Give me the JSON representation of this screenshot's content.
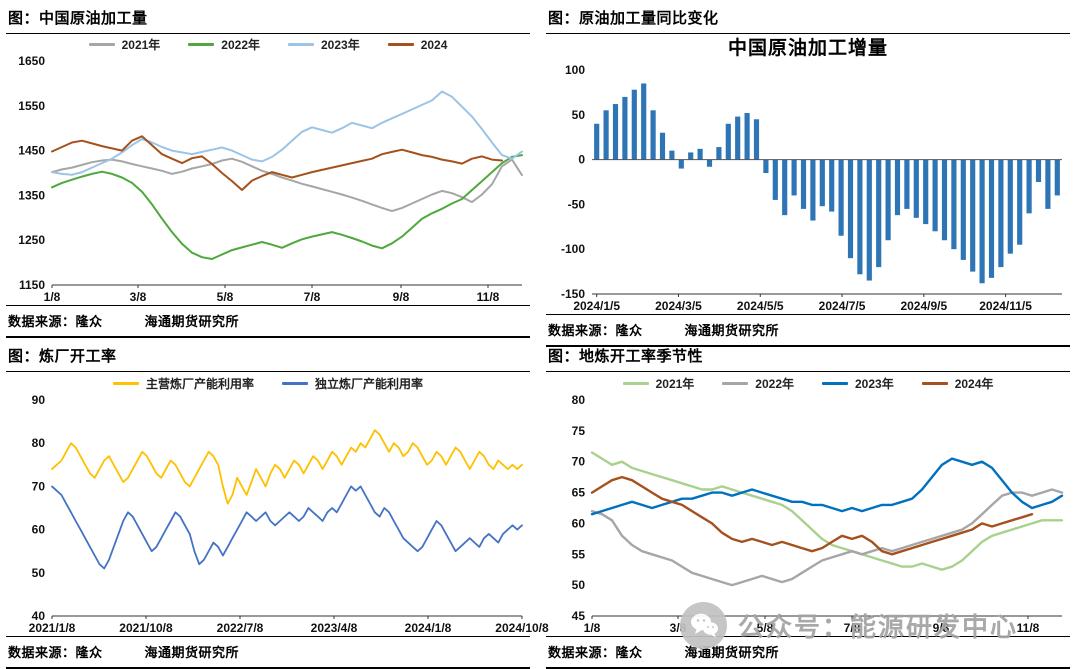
{
  "panels": [
    {
      "header": "图：中国原油加工量",
      "source_left": "数据来源：隆众",
      "source_right": "海通期货研究所"
    },
    {
      "header": "图：原油加工量同比变化",
      "source_left": "数据来源：隆众",
      "source_right": "海通期货研究所"
    },
    {
      "header": "图：炼厂开工率",
      "source_left": "数据来源：隆众",
      "source_right": "海通期货研究所"
    },
    {
      "header": "图：地炼开工率季节性",
      "source_left": "数据来源：隆众",
      "source_right": "海通期货研究所"
    }
  ],
  "watermark": {
    "icon": "wechat-icon",
    "text": "公众号：能源研发中心"
  },
  "chart_data": [
    {
      "type": "line",
      "title": "",
      "ylim": [
        1150,
        1650
      ],
      "yticks": [
        1650,
        1550,
        1450,
        1350,
        1250,
        1150
      ],
      "x_max": 47,
      "xticks": [
        0,
        8.6,
        17.3,
        26,
        34.9,
        43.6
      ],
      "xticklabels": [
        "1/8",
        "3/8",
        "5/8",
        "7/8",
        "9/8",
        "11/8"
      ],
      "line_width": 2,
      "series": [
        {
          "name": "2021年",
          "color": "#A6A6A6",
          "values": [
            1402,
            1408,
            1412,
            1418,
            1424,
            1428,
            1430,
            1426,
            1420,
            1415,
            1410,
            1405,
            1398,
            1403,
            1410,
            1415,
            1420,
            1428,
            1432,
            1425,
            1415,
            1405,
            1398,
            1390,
            1383,
            1376,
            1370,
            1364,
            1358,
            1352,
            1345,
            1338,
            1330,
            1322,
            1315,
            1322,
            1332,
            1342,
            1352,
            1360,
            1355,
            1346,
            1335,
            1352,
            1375,
            1415,
            1430,
            1395
          ]
        },
        {
          "name": "2022年",
          "color": "#4FA83D",
          "values": [
            1368,
            1378,
            1385,
            1392,
            1398,
            1403,
            1398,
            1390,
            1378,
            1358,
            1330,
            1298,
            1268,
            1242,
            1222,
            1212,
            1208,
            1218,
            1228,
            1234,
            1240,
            1246,
            1240,
            1233,
            1243,
            1252,
            1258,
            1263,
            1268,
            1262,
            1255,
            1247,
            1238,
            1232,
            1243,
            1258,
            1278,
            1298,
            1310,
            1320,
            1332,
            1342,
            1362,
            1382,
            1402,
            1422,
            1436,
            1440
          ]
        },
        {
          "name": "2023年",
          "color": "#9DC3E6",
          "values": [
            1402,
            1398,
            1396,
            1402,
            1412,
            1422,
            1432,
            1446,
            1462,
            1476,
            1468,
            1458,
            1450,
            1446,
            1442,
            1447,
            1452,
            1457,
            1450,
            1440,
            1430,
            1426,
            1436,
            1452,
            1472,
            1492,
            1502,
            1496,
            1490,
            1500,
            1512,
            1506,
            1500,
            1512,
            1522,
            1532,
            1542,
            1552,
            1562,
            1582,
            1570,
            1548,
            1526,
            1498,
            1468,
            1440,
            1432,
            1448
          ]
        },
        {
          "name": "2024",
          "color": "#A5511E",
          "values": [
            1448,
            1458,
            1468,
            1472,
            1466,
            1460,
            1455,
            1450,
            1472,
            1482,
            1462,
            1442,
            1432,
            1422,
            1433,
            1437,
            1420,
            1400,
            1382,
            1362,
            1383,
            1393,
            1402,
            1396,
            1390,
            1396,
            1402,
            1407,
            1412,
            1417,
            1422,
            1427,
            1432,
            1442,
            1447,
            1452,
            1446,
            1440,
            1436,
            1430,
            1426,
            1421,
            1432,
            1437,
            1430,
            1428,
            null,
            null
          ]
        }
      ]
    },
    {
      "type": "bar",
      "title": "中国原油加工增量",
      "ylim": [
        -150,
        100
      ],
      "yticks": [
        100,
        50,
        0,
        -50,
        -100,
        -150
      ],
      "bar_color": "#2E75B6",
      "xticks": [
        0,
        8.7,
        17.4,
        26.1,
        34.8,
        43.5
      ],
      "xticklabels": [
        "2024/1/5",
        "2024/3/5",
        "2024/5/5",
        "2024/7/5",
        "2024/9/5",
        "2024/11/5"
      ],
      "values": [
        40,
        55,
        62,
        70,
        78,
        85,
        55,
        30,
        10,
        -10,
        8,
        12,
        -8,
        14,
        40,
        48,
        52,
        45,
        -15,
        -45,
        -62,
        -40,
        -55,
        -68,
        -52,
        -58,
        -85,
        -110,
        -128,
        -135,
        -120,
        -90,
        -62,
        -55,
        -65,
        -72,
        -80,
        -90,
        -100,
        -112,
        -125,
        -138,
        -132,
        -120,
        -105,
        -95,
        -60,
        -25,
        -55,
        -40
      ]
    },
    {
      "type": "line",
      "title": "",
      "ylim": [
        40,
        90
      ],
      "yticks": [
        90,
        80,
        70,
        60,
        50,
        40
      ],
      "x_max": 99,
      "xticks": [
        0,
        19.8,
        39.6,
        59.4,
        79.2,
        99
      ],
      "xticklabels": [
        "2021/1/8",
        "2021/10/8",
        "2022/7/8",
        "2023/4/8",
        "2024/1/8",
        "2024/10/8"
      ],
      "line_width": 1.8,
      "series": [
        {
          "name": "主营炼厂产能利用率",
          "color": "#FFC000",
          "values": [
            74,
            75,
            76,
            78,
            80,
            79,
            77,
            75,
            73,
            72,
            74,
            76,
            77,
            75,
            73,
            71,
            72,
            74,
            76,
            78,
            77,
            75,
            73,
            72,
            74,
            76,
            75,
            73,
            71,
            70,
            72,
            74,
            76,
            78,
            77,
            75,
            70,
            66,
            68,
            72,
            70,
            68,
            71,
            74,
            72,
            70,
            73,
            75,
            74,
            72,
            74,
            76,
            75,
            73,
            75,
            77,
            76,
            74,
            76,
            78,
            77,
            75,
            77,
            79,
            78,
            80,
            79,
            81,
            83,
            82,
            80,
            78,
            80,
            79,
            77,
            78,
            80,
            79,
            77,
            75,
            76,
            78,
            77,
            75,
            77,
            79,
            78,
            76,
            74,
            76,
            78,
            77,
            75,
            74,
            76,
            75,
            74,
            75,
            74,
            75
          ]
        },
        {
          "name": "独立炼厂产能利用率",
          "color": "#4472C4",
          "values": [
            70,
            69,
            68,
            66,
            64,
            62,
            60,
            58,
            56,
            54,
            52,
            51,
            53,
            56,
            59,
            62,
            64,
            63,
            61,
            59,
            57,
            55,
            56,
            58,
            60,
            62,
            64,
            63,
            61,
            59,
            55,
            52,
            53,
            55,
            57,
            56,
            54,
            56,
            58,
            60,
            62,
            64,
            63,
            62,
            63,
            64,
            62,
            61,
            62,
            63,
            64,
            63,
            62,
            63,
            65,
            64,
            63,
            62,
            64,
            65,
            64,
            66,
            68,
            70,
            69,
            70,
            68,
            66,
            64,
            63,
            65,
            64,
            62,
            60,
            58,
            57,
            56,
            55,
            56,
            58,
            60,
            62,
            61,
            59,
            57,
            55,
            56,
            57,
            58,
            57,
            56,
            58,
            59,
            58,
            57,
            59,
            60,
            61,
            60,
            61
          ]
        }
      ]
    },
    {
      "type": "line",
      "title": "",
      "ylim": [
        45,
        80
      ],
      "yticks": [
        80,
        75,
        70,
        65,
        60,
        55,
        50,
        45
      ],
      "x_max": 47,
      "xticks": [
        0,
        8.6,
        17.3,
        26,
        34.9,
        43.6
      ],
      "xticklabels": [
        "1/8",
        "3/8",
        "5/8",
        "7/8",
        "9/8",
        "11/8"
      ],
      "line_width": 2.4,
      "series": [
        {
          "name": "2021年",
          "color": "#A9D18E",
          "values": [
            71.5,
            70.5,
            69.5,
            70,
            69,
            68.5,
            68,
            67.5,
            67,
            66.5,
            66,
            65.5,
            65.5,
            66,
            65.5,
            65,
            64.5,
            64,
            63.5,
            63,
            62,
            60.5,
            59,
            57.5,
            56.5,
            56,
            55.5,
            55,
            54.5,
            54,
            53.5,
            53,
            53,
            53.5,
            53,
            52.5,
            53,
            54,
            55.5,
            57,
            58,
            58.5,
            59,
            59.5,
            60,
            60.5,
            60.5,
            60.5
          ]
        },
        {
          "name": "2022年",
          "color": "#A6A6A6",
          "values": [
            62,
            61.5,
            60.5,
            58,
            56.5,
            55.5,
            55,
            54.5,
            54,
            53,
            52,
            51.5,
            51,
            50.5,
            50,
            50.5,
            51,
            51.5,
            51,
            50.5,
            51,
            52,
            53,
            54,
            54.5,
            55,
            55.5,
            55,
            55.5,
            56,
            55.5,
            56,
            56.5,
            57,
            57.5,
            58,
            58.5,
            59,
            60,
            61.5,
            63,
            64.5,
            65,
            65,
            64.5,
            65,
            65.5,
            65
          ]
        },
        {
          "name": "2023年",
          "color": "#0070C0",
          "values": [
            61.5,
            62,
            62.5,
            63,
            63.5,
            63,
            62.5,
            63,
            63.5,
            64,
            64,
            64.5,
            65,
            65,
            64.5,
            65,
            65.5,
            65,
            64.5,
            64,
            63.5,
            63.5,
            63,
            63,
            62.5,
            62,
            62.5,
            62,
            62.5,
            63,
            63,
            63.5,
            64,
            65.5,
            67.5,
            69.5,
            70.5,
            70,
            69.5,
            70,
            69,
            67,
            65,
            63.5,
            62.5,
            63,
            63.5,
            64.5
          ]
        },
        {
          "name": "2024年",
          "color": "#A5511E",
          "values": [
            65,
            66,
            67,
            67.5,
            67,
            66,
            65,
            64,
            63.5,
            63,
            62,
            61,
            60,
            58.5,
            57.5,
            57,
            57.5,
            57,
            56.5,
            57,
            56.5,
            56,
            55.5,
            56,
            57,
            58,
            57.5,
            58,
            57,
            55.5,
            55,
            55.5,
            56,
            56.5,
            57,
            57.5,
            58,
            58.5,
            59,
            60,
            59.5,
            60,
            60.5,
            61,
            61.5,
            null,
            null,
            null
          ]
        }
      ]
    }
  ]
}
